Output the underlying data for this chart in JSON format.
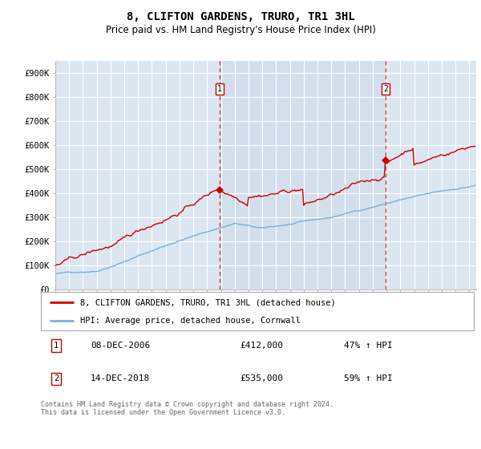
{
  "title": "8, CLIFTON GARDENS, TRURO, TR1 3HL",
  "subtitle": "Price paid vs. HM Land Registry's House Price Index (HPI)",
  "ylabel_ticks": [
    "£0",
    "£100K",
    "£200K",
    "£300K",
    "£400K",
    "£500K",
    "£600K",
    "£700K",
    "£800K",
    "£900K"
  ],
  "ytick_values": [
    0,
    100000,
    200000,
    300000,
    400000,
    500000,
    600000,
    700000,
    800000,
    900000
  ],
  "ylim": [
    0,
    950000
  ],
  "xlim_start": 1995.0,
  "xlim_end": 2025.5,
  "hpi_color": "#7bafd4",
  "price_color": "#cc0000",
  "sale1_date": 2006.92,
  "sale1_price": 412000,
  "sale2_date": 2018.95,
  "sale2_price": 535000,
  "plot_bg_color": "#dce6f1",
  "grid_color": "#ffffff",
  "legend_entry1": "8, CLIFTON GARDENS, TRURO, TR1 3HL (detached house)",
  "legend_entry2": "HPI: Average price, detached house, Cornwall",
  "table_row1_label": "1",
  "table_row1_date": "08-DEC-2006",
  "table_row1_price": "£412,000",
  "table_row1_hpi": "47% ↑ HPI",
  "table_row2_label": "2",
  "table_row2_date": "14-DEC-2018",
  "table_row2_price": "£535,000",
  "table_row2_hpi": "59% ↑ HPI",
  "footer": "Contains HM Land Registry data © Crown copyright and database right 2024.\nThis data is licensed under the Open Government Licence v3.0."
}
